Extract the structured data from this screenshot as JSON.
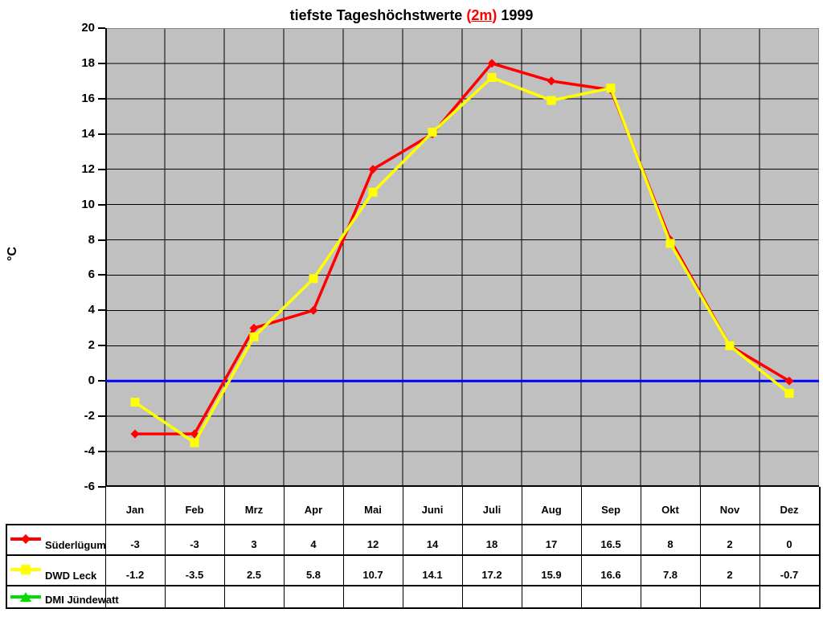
{
  "title": {
    "prefix": "tiefste Tageshöchstwerte ",
    "paren_open": "(",
    "highlight": "2m",
    "paren_close": ")",
    "suffix": " 1999",
    "highlight_color": "#FF0000"
  },
  "chart_data": {
    "type": "line",
    "title": "tiefste Tageshöchstwerte (2m) 1999",
    "ylabel": "°C",
    "ylim": [
      -6,
      20
    ],
    "ytick_step": 2,
    "grid": true,
    "plot_bg": "#C0C0C0",
    "grid_color": "#000000",
    "axis_color": "#000000",
    "plot_border_color": "#848284",
    "zero_line_color": "#0000FF",
    "legend_position": "table-left",
    "categories": [
      "Jan",
      "Feb",
      "Mrz",
      "Apr",
      "Mai",
      "Juni",
      "Juli",
      "Aug",
      "Sep",
      "Okt",
      "Nov",
      "Dez"
    ],
    "series": [
      {
        "name": "Süderlügum",
        "color": "#FF0000",
        "marker": "diamond",
        "values": [
          -3,
          -3,
          3,
          4,
          12,
          14,
          18,
          17,
          16.5,
          8,
          2,
          0
        ]
      },
      {
        "name": "DWD Leck",
        "color": "#FFFF00",
        "marker": "square",
        "values": [
          -1.2,
          -3.5,
          2.5,
          5.8,
          10.7,
          14.1,
          17.2,
          15.9,
          16.6,
          7.8,
          2,
          -0.7
        ]
      },
      {
        "name": "DMI Jündewatt",
        "color": "#00DD00",
        "marker": "triangle",
        "values": []
      }
    ]
  }
}
